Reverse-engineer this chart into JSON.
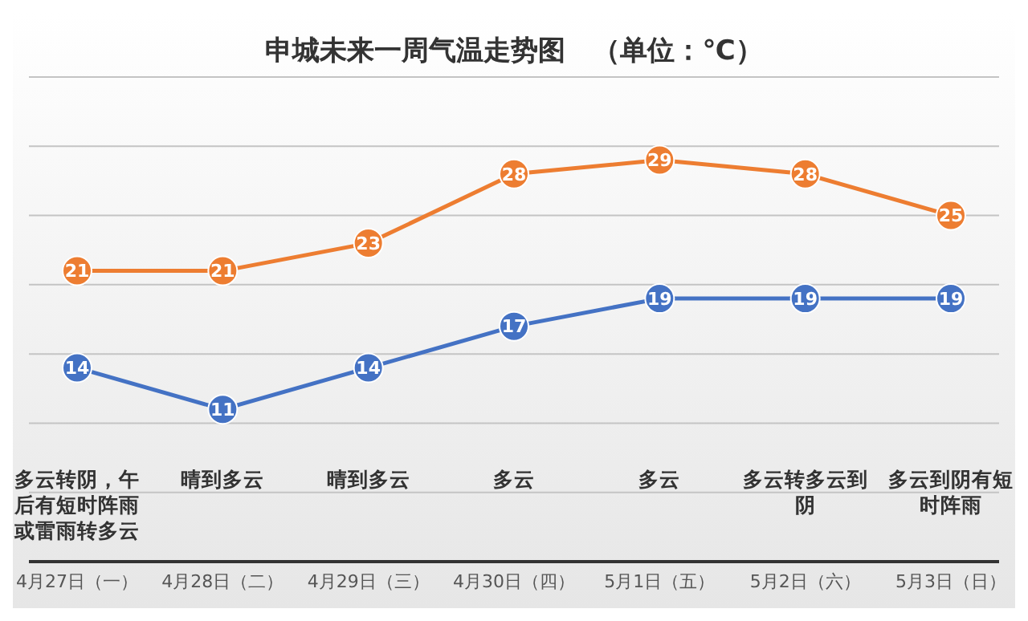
{
  "chart_data": {
    "type": "line",
    "title": "申城未来一周气温走势图　（单位：℃）",
    "categories": [
      "4月27日（一）",
      "4月28日（二）",
      "4月29日（三）",
      "4月30日（四）",
      "5月1日（五）",
      "5月2日（六）",
      "5月3日（日）"
    ],
    "series": [
      {
        "color": "#ed7d31",
        "values": [
          21,
          21,
          23,
          28,
          29,
          28,
          25
        ]
      },
      {
        "color": "#4472c4",
        "values": [
          14,
          11,
          14,
          17,
          19,
          19,
          19
        ]
      }
    ],
    "ylim": [
      0,
      35
    ],
    "yticks": [
      {
        "value": 0,
        "label": null
      },
      {
        "value": 5,
        "label": null
      },
      {
        "value": 10,
        "label": null
      },
      {
        "value": 15,
        "label": null
      },
      {
        "value": 20,
        "label": null
      },
      {
        "value": 25,
        "label": null
      },
      {
        "value": 30,
        "label": null
      },
      {
        "value": 35,
        "label": null
      }
    ],
    "tick_labels": "x",
    "grid": "y",
    "marker": "circle",
    "data_labels": true,
    "legend": false,
    "annotations": [
      "多云转阴，午后有短时阵雨或雷雨转多云",
      "晴到多云",
      "晴到多云",
      "多云",
      "多云",
      "多云转多云到阴",
      "多云到阴有短时阵雨"
    ]
  }
}
